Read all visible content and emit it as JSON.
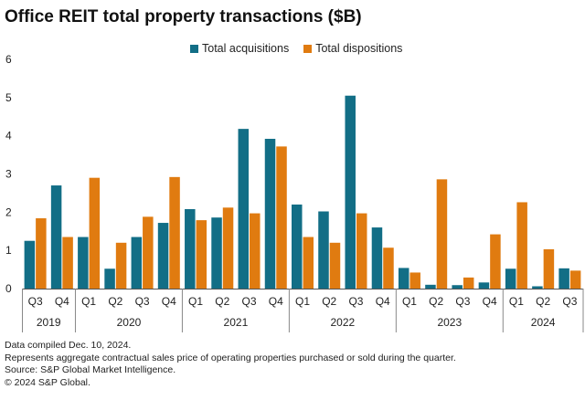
{
  "title": "Office REIT total property transactions ($B)",
  "legend": [
    {
      "name": "Total acquisitions",
      "color": "#126e86"
    },
    {
      "name": "Total dispositions",
      "color": "#e07b10"
    }
  ],
  "notes": [
    "Data compiled Dec. 10, 2024.",
    "Represents aggregate contractual sales price of operating properties purchased or sold during the quarter.",
    "Source: S&P Global Market Intelligence.",
    "© 2024 S&P Global."
  ],
  "chart_data": {
    "type": "bar",
    "title": "Office REIT total property transactions ($B)",
    "ylim": [
      0,
      6
    ],
    "yticks": [
      0,
      1,
      2,
      3,
      4,
      5,
      6
    ],
    "grid": false,
    "legend_position": "top",
    "categories": [
      "Q3",
      "Q4",
      "Q1",
      "Q2",
      "Q3",
      "Q4",
      "Q1",
      "Q2",
      "Q3",
      "Q4",
      "Q1",
      "Q2",
      "Q3",
      "Q4",
      "Q1",
      "Q2",
      "Q3",
      "Q4",
      "Q1",
      "Q2",
      "Q3"
    ],
    "years": [
      {
        "label": "2019",
        "span": 2
      },
      {
        "label": "2020",
        "span": 4
      },
      {
        "label": "2021",
        "span": 4
      },
      {
        "label": "2022",
        "span": 4
      },
      {
        "label": "2023",
        "span": 4
      },
      {
        "label": "2024",
        "span": 3
      }
    ],
    "series": [
      {
        "name": "Total acquisitions",
        "color": "#126e86",
        "values": [
          1.25,
          2.7,
          1.35,
          0.52,
          1.35,
          1.72,
          2.08,
          1.86,
          4.18,
          3.92,
          2.2,
          2.02,
          5.05,
          1.6,
          0.54,
          0.1,
          0.09,
          0.16,
          0.52,
          0.06,
          0.53
        ]
      },
      {
        "name": "Total dispositions",
        "color": "#e07b10",
        "values": [
          1.84,
          1.35,
          2.9,
          1.2,
          1.88,
          2.92,
          1.79,
          2.12,
          1.97,
          3.72,
          1.35,
          1.2,
          1.97,
          1.07,
          0.42,
          2.86,
          0.29,
          1.42,
          2.26,
          1.03,
          0.47
        ]
      }
    ]
  }
}
